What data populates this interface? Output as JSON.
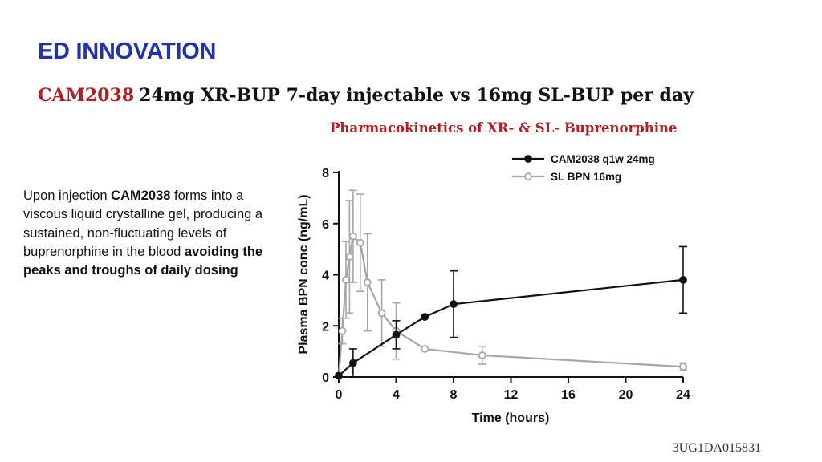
{
  "slide": {
    "heading": "ED INNOVATION",
    "subtitle_brand": "CAM2038",
    "subtitle_rest": "24mg XR-BUP 7-day injectable vs 16mg SL-BUP per day",
    "chart_caption": "Pharmacokinetics of  XR- & SL- Buprenorphine",
    "body": {
      "t1": "Upon injection ",
      "b1": "CAM2038",
      "t2": " forms into a viscous liquid crystalline gel, producing a sustained, non-fluctuating levels of buprenorphine in the blood ",
      "b2": "avoiding the peaks and troughs of daily dosing"
    },
    "slide_code": "3UG1DA015831"
  },
  "colors": {
    "heading": "#2233aa",
    "brand": "#b01f23",
    "series_xr": "#111111",
    "series_sl": "#a6a6a6"
  },
  "chart_data": {
    "type": "line",
    "xlabel": "Time (hours)",
    "ylabel": "Plasma BPN conc (ng/mL)",
    "xlim": [
      0,
      24
    ],
    "ylim": [
      0,
      8
    ],
    "xticks": [
      0,
      4,
      8,
      12,
      16,
      20,
      24
    ],
    "yticks": [
      0,
      2,
      4,
      6,
      8
    ],
    "grid": false,
    "legend_position": "top-right",
    "series": [
      {
        "name": "CAM2038 q1w 24mg",
        "marker": "filled-circle",
        "x": [
          0,
          1,
          4,
          6,
          8,
          24
        ],
        "y": [
          0.05,
          0.55,
          1.65,
          2.35,
          2.85,
          3.8
        ],
        "err": [
          0,
          0.55,
          0.55,
          0.0,
          1.3,
          1.3
        ]
      },
      {
        "name": "SL BPN 16mg",
        "marker": "open-circle",
        "x": [
          0,
          0.25,
          0.5,
          0.75,
          1,
          1.5,
          2,
          3,
          4,
          6,
          10,
          24
        ],
        "y": [
          0.05,
          1.8,
          3.8,
          4.7,
          5.5,
          5.25,
          3.7,
          2.5,
          1.8,
          1.1,
          0.85,
          0.4
        ],
        "err": [
          0,
          0.5,
          1.5,
          2.2,
          1.8,
          1.9,
          1.9,
          1.3,
          1.1,
          0.0,
          0.35,
          0.15
        ]
      }
    ]
  }
}
